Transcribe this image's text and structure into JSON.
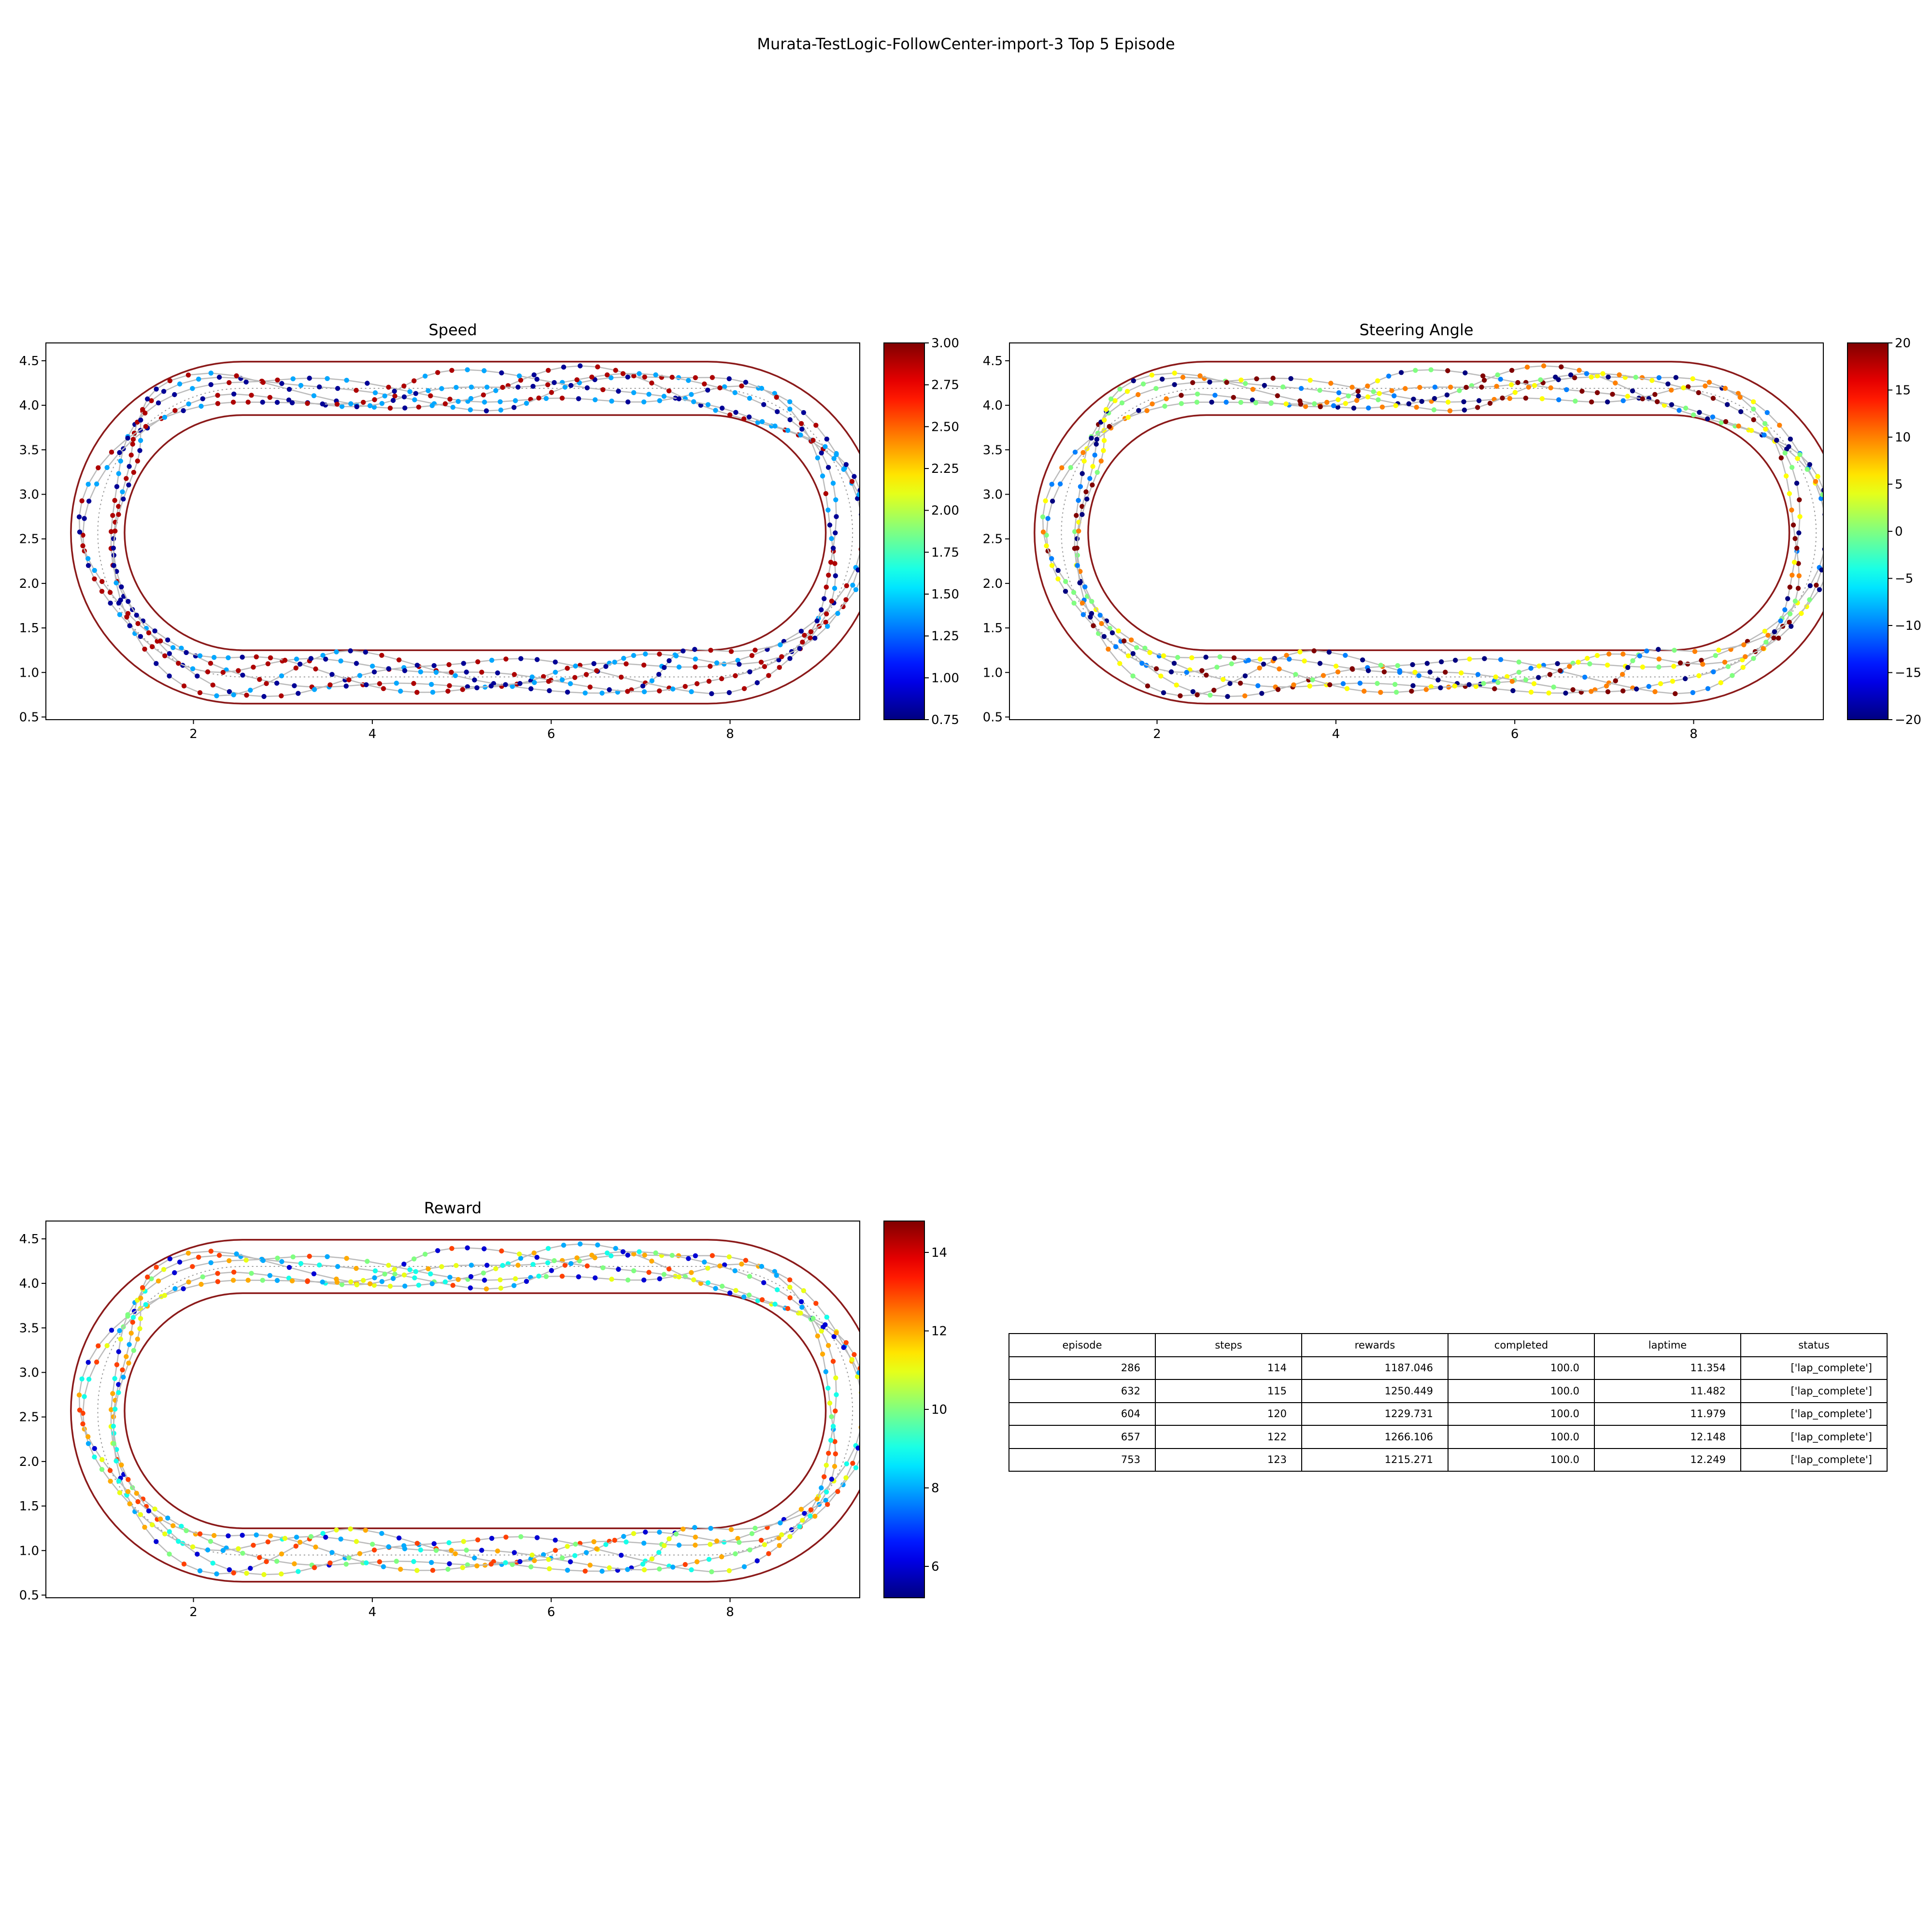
{
  "figure": {
    "title": "Murata-TestLogic-FollowCenter-import-3 Top 5 Episode"
  },
  "track": {
    "outer_color": "#8b1a1a",
    "path_color": "#bbbbbb",
    "center_color": "#999999"
  },
  "chart_data": [
    {
      "type": "scatter",
      "title": "Speed",
      "colormap": "jet",
      "xlim": [
        0.35,
        9.45
      ],
      "ylim": [
        0.47,
        4.7
      ],
      "xticks": [
        "2",
        "4",
        "6",
        "8"
      ],
      "yticks": [
        "0.5",
        "1.0",
        "1.5",
        "2.0",
        "2.5",
        "3.0",
        "3.5",
        "4.0",
        "4.5"
      ],
      "colorbar": {
        "range": [
          0.75,
          3.0
        ],
        "ticks": [
          "0.75",
          "1.00",
          "1.25",
          "1.50",
          "1.75",
          "2.00",
          "2.25",
          "2.50",
          "2.75",
          "3.00"
        ]
      },
      "value_levels": [
        0.8,
        1.4,
        2.9
      ],
      "episodes": [
        286,
        632,
        604,
        657,
        753
      ]
    },
    {
      "type": "scatter",
      "title": "Steering Angle",
      "colormap": "jet",
      "xlim": [
        0.35,
        9.45
      ],
      "ylim": [
        0.47,
        4.7
      ],
      "xticks": [
        "2",
        "4",
        "6",
        "8"
      ],
      "yticks": [
        "0.5",
        "1.0",
        "1.5",
        "2.0",
        "2.5",
        "3.0",
        "3.5",
        "4.0",
        "4.5"
      ],
      "colorbar": {
        "range": [
          -20,
          20
        ],
        "ticks": [
          "−20",
          "−15",
          "−10",
          "−5",
          "0",
          "5",
          "10",
          "15",
          "20"
        ]
      },
      "value_levels": [
        -20,
        -10,
        0,
        5,
        10,
        20
      ],
      "episodes": [
        286,
        632,
        604,
        657,
        753
      ]
    },
    {
      "type": "scatter",
      "title": "Reward",
      "colormap": "jet",
      "xlim": [
        0.35,
        9.45
      ],
      "ylim": [
        0.47,
        4.7
      ],
      "xticks": [
        "2",
        "4",
        "6",
        "8"
      ],
      "yticks": [
        "0.5",
        "1.0",
        "1.5",
        "2.0",
        "2.5",
        "3.0",
        "3.5",
        "4.0",
        "4.5"
      ],
      "colorbar": {
        "range": [
          5.2,
          14.8
        ],
        "ticks": [
          "6",
          "8",
          "10",
          "12",
          "14"
        ]
      },
      "value_levels": [
        6,
        8,
        9,
        10,
        11,
        12,
        13
      ],
      "episodes": [
        286,
        632,
        604,
        657,
        753
      ]
    },
    {
      "type": "table",
      "columns": [
        "episode",
        "steps",
        "rewards",
        "completed",
        "laptime",
        "status"
      ],
      "rows": [
        [
          "286",
          "114",
          "1187.046",
          "100.0",
          "11.354",
          "['lap_complete']"
        ],
        [
          "632",
          "115",
          "1250.449",
          "100.0",
          "11.482",
          "['lap_complete']"
        ],
        [
          "604",
          "120",
          "1229.731",
          "100.0",
          "11.979",
          "['lap_complete']"
        ],
        [
          "657",
          "122",
          "1266.106",
          "100.0",
          "12.148",
          "['lap_complete']"
        ],
        [
          "753",
          "123",
          "1215.271",
          "100.0",
          "12.249",
          "['lap_complete']"
        ]
      ]
    }
  ]
}
